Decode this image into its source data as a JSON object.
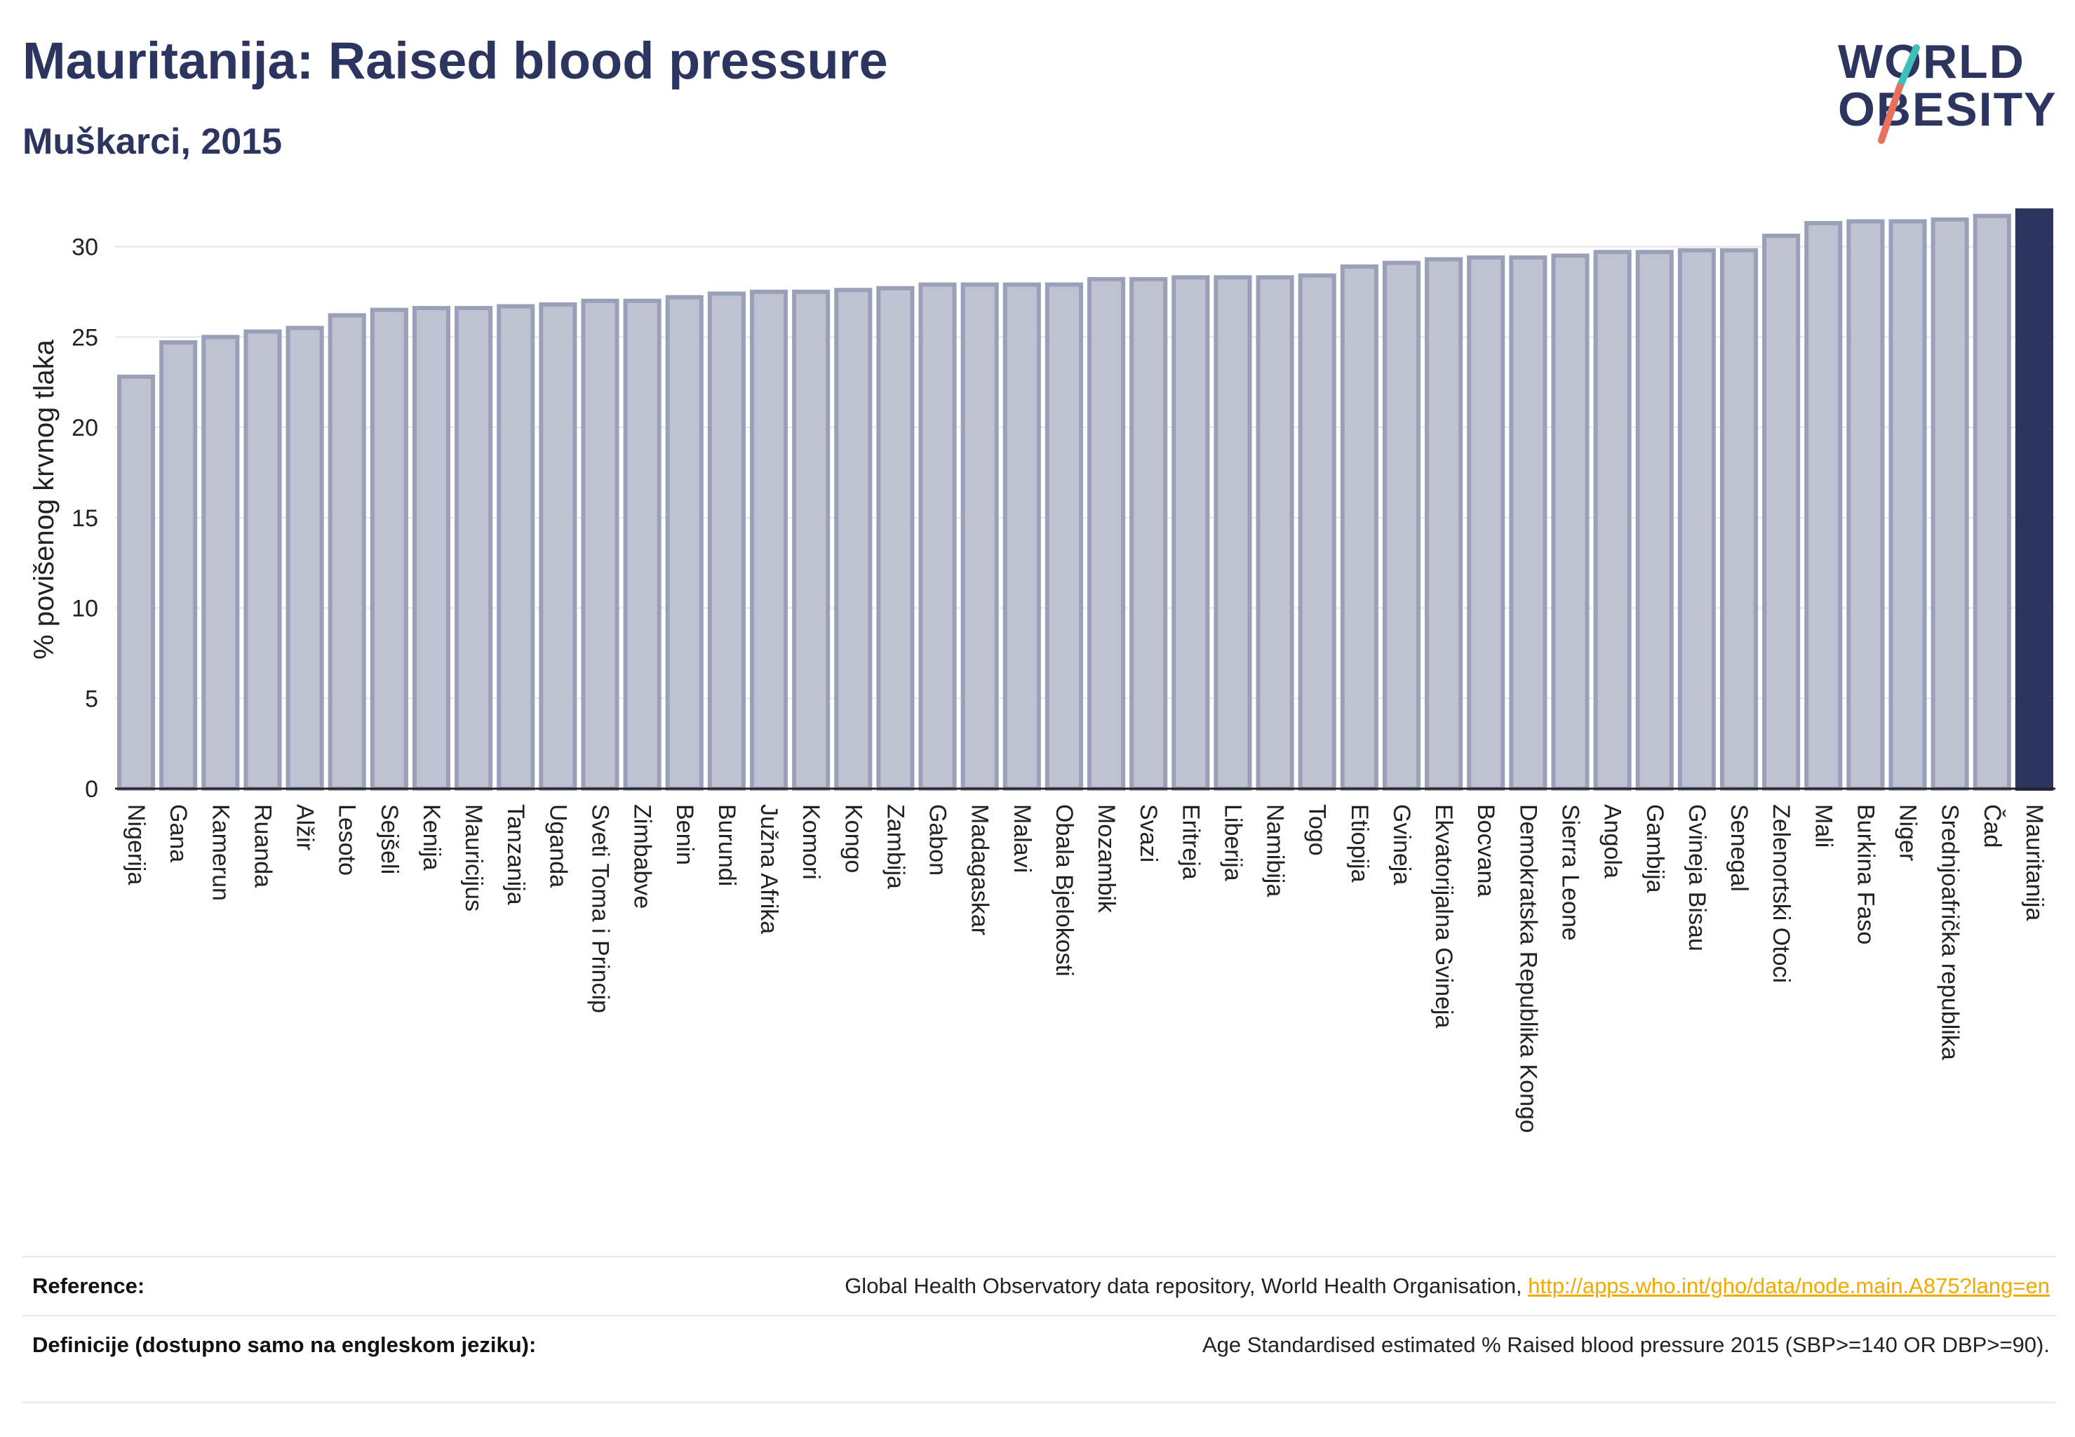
{
  "title": "Mauritanija: Raised blood pressure",
  "subtitle": "Muškarci, 2015",
  "logo": {
    "line1": "WORLD",
    "line2": "OBESITY"
  },
  "colors": {
    "bar_fill": "#bfc3d1",
    "bar_stroke": "#9aa0b8",
    "highlight": "#2b3560",
    "grid": "#e4e6ee",
    "title": "#2b3560",
    "link": "#f2a900",
    "logo_slash_top": "#3fbfb8",
    "logo_slash_bottom": "#e8705c"
  },
  "chart_data": {
    "type": "bar",
    "ylabel": "% povišenog krvnog tlaka",
    "xlabel": "",
    "ylim": [
      0,
      32
    ],
    "yticks": [
      0,
      5,
      10,
      15,
      20,
      25,
      30
    ],
    "grid": true,
    "highlight_category": "Mauritanija",
    "categories": [
      "Nigerija",
      "Gana",
      "Kamerun",
      "Ruanda",
      "Alžir",
      "Lesoto",
      "Sejšeli",
      "Kenija",
      "Mauricijus",
      "Tanzanija",
      "Uganda",
      "Sveti Toma i Princip",
      "Zimbabve",
      "Benin",
      "Burundi",
      "Južna Afrika",
      "Komori",
      "Kongo",
      "Zambija",
      "Gabon",
      "Madagaskar",
      "Malavi",
      "Obala Bjelokosti",
      "Mozambik",
      "Svazi",
      "Eritreja",
      "Liberija",
      "Namibija",
      "Togo",
      "Etiopija",
      "Gvineja",
      "Ekvatorijalna Gvineja",
      "Bocvana",
      "Demokratska Republika Kongo",
      "Sierra Leone",
      "Angola",
      "Gambija",
      "Gvineja Bisau",
      "Senegal",
      "Zelenortski Otoci",
      "Mali",
      "Burkina Faso",
      "Niger",
      "Srednjoafrička republika",
      "Čad",
      "Mauritanija"
    ],
    "values": [
      22.8,
      24.7,
      25.0,
      25.3,
      25.5,
      26.2,
      26.5,
      26.6,
      26.6,
      26.7,
      26.8,
      27.0,
      27.0,
      27.2,
      27.4,
      27.5,
      27.5,
      27.6,
      27.7,
      27.9,
      27.9,
      27.9,
      27.9,
      28.2,
      28.2,
      28.3,
      28.3,
      28.3,
      28.4,
      28.9,
      29.1,
      29.3,
      29.4,
      29.4,
      29.5,
      29.7,
      29.7,
      29.8,
      29.8,
      30.6,
      31.3,
      31.4,
      31.4,
      31.5,
      31.7,
      32.0
    ]
  },
  "footer": {
    "reference_label": "Reference:",
    "reference_text": "Global Health Observatory data repository, World Health Organisation, ",
    "reference_link": "http://apps.who.int/gho/data/node.main.A875?lang=en",
    "definition_label": "Definicije (dostupno samo na engleskom jeziku):",
    "definition_text": "Age Standardised estimated % Raised blood pressure 2015 (SBP>=140 OR DBP>=90)."
  }
}
